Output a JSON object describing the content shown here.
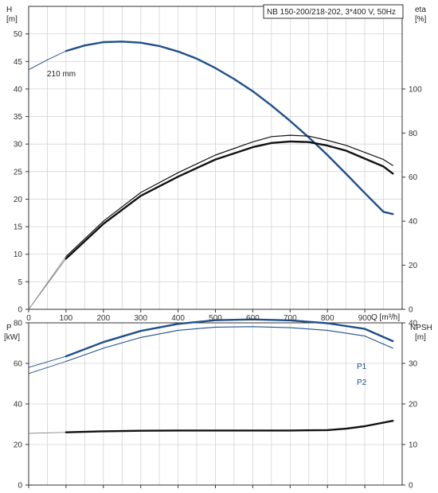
{
  "title_box": "NB 150-200/218-202, 3*400 V, 50Hz",
  "colors": {
    "blue": "#1f4f8b",
    "black": "#111111",
    "thin": "#8a8a8a",
    "grid": "#d4d4d4"
  },
  "chart_data": [
    {
      "type": "line",
      "panel": "top",
      "ylabel": "H",
      "yunit": "[m]",
      "y2label": "eta",
      "y2unit": "[%]",
      "xlabel": "Q [m³/h]",
      "xlim": [
        0,
        1000
      ],
      "ylim": [
        0,
        55
      ],
      "y2lim": [
        0,
        137.5
      ],
      "xticks": [
        "0",
        "100",
        "200",
        "300",
        "400",
        "500",
        "600",
        "700",
        "800",
        "900"
      ],
      "yticks": [
        "0",
        "5",
        "10",
        "15",
        "20",
        "25",
        "30",
        "35",
        "40",
        "45",
        "50"
      ],
      "y2ticks": [
        "0",
        "20",
        "40",
        "60",
        "80",
        "100"
      ],
      "annotations": [
        "210 mm"
      ],
      "series": [
        {
          "axis": "left",
          "style": "thick-blue",
          "x": [
            0,
            50,
            100,
            150,
            200,
            250,
            300,
            350,
            400,
            450,
            500,
            550,
            600,
            650,
            700,
            750,
            800,
            850,
            900,
            950,
            975
          ],
          "y": [
            43.5,
            45.3,
            46.9,
            47.9,
            48.5,
            48.6,
            48.4,
            47.8,
            46.8,
            45.5,
            43.8,
            41.8,
            39.6,
            37.0,
            34.2,
            31.2,
            28.0,
            24.6,
            21.1,
            17.7,
            17.3
          ]
        },
        {
          "axis": "right",
          "style": "thin-black",
          "x": [
            0,
            100,
            200,
            300,
            400,
            500,
            600,
            650,
            700,
            750,
            800,
            850,
            900,
            950,
            975
          ],
          "y": [
            0,
            24,
            40,
            53,
            62,
            70,
            76,
            78.4,
            79.0,
            78.6,
            76.7,
            74.4,
            71.2,
            68,
            65.3
          ]
        },
        {
          "axis": "right",
          "style": "thick-black",
          "x": [
            0,
            100,
            200,
            300,
            400,
            500,
            600,
            650,
            700,
            750,
            800,
            850,
            900,
            950,
            975
          ],
          "y": [
            0,
            23,
            38.8,
            51.5,
            60.2,
            68,
            73.6,
            75.5,
            76.2,
            75.9,
            74.3,
            72,
            68.4,
            64.8,
            61.6
          ]
        }
      ]
    },
    {
      "type": "line",
      "panel": "bottom",
      "ylabel": "P",
      "yunit": "[kW]",
      "y2label": "NPSH",
      "y2unit": "[m]",
      "xlim": [
        0,
        1000
      ],
      "ylim": [
        0,
        80
      ],
      "y2lim": [
        0,
        40
      ],
      "yticks": [
        "0",
        "20",
        "40",
        "60",
        "80"
      ],
      "y2ticks": [
        "0",
        "10",
        "20",
        "30",
        "40"
      ],
      "series": [
        {
          "name": "P1",
          "axis": "left",
          "style": "thick-blue",
          "x": [
            0,
            100,
            200,
            300,
            400,
            500,
            600,
            700,
            800,
            900,
            975
          ],
          "y": [
            58,
            63.5,
            70.5,
            76,
            79.5,
            81.3,
            81.7,
            81.2,
            79.8,
            77,
            71
          ]
        },
        {
          "name": "P2",
          "axis": "left",
          "style": "thin-blue",
          "x": [
            0,
            100,
            200,
            300,
            400,
            500,
            600,
            700,
            800,
            900,
            975
          ],
          "y": [
            55,
            61,
            67.5,
            72.8,
            76.3,
            77.9,
            78.1,
            77.6,
            76.3,
            73.5,
            67.5
          ]
        },
        {
          "name": "",
          "axis": "left",
          "style": "thick-black",
          "x": [
            0,
            100,
            200,
            300,
            400,
            500,
            600,
            700,
            800,
            850,
            900,
            975
          ],
          "y": [
            25.5,
            26,
            26.5,
            26.8,
            26.9,
            26.9,
            26.9,
            26.9,
            27.1,
            27.8,
            29,
            31.7
          ]
        }
      ]
    }
  ]
}
